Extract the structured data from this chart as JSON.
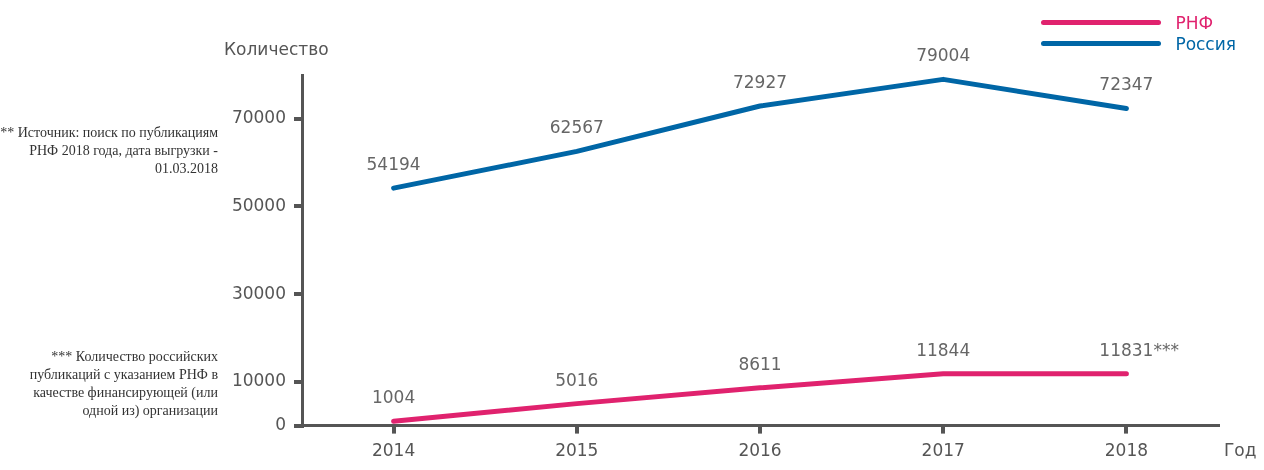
{
  "chart_data": {
    "type": "line",
    "ylabel": "Количество",
    "xlabel": "Год",
    "categories": [
      "2014",
      "2015",
      "2016",
      "2017",
      "2018"
    ],
    "series": [
      {
        "name": "РНФ",
        "color": "#e0226e",
        "values": [
          1004,
          5016,
          8611,
          11844,
          11831
        ],
        "value_labels": [
          "1004",
          "5016",
          "8611",
          "11844",
          "11831***"
        ]
      },
      {
        "name": "Россия",
        "color": "#0066a6",
        "values": [
          54194,
          62567,
          72927,
          79004,
          72347
        ],
        "value_labels": [
          "54194",
          "62567",
          "72927",
          "79004",
          "72347"
        ]
      }
    ],
    "ylim": [
      0,
      80000
    ],
    "yticks": [
      0,
      10000,
      30000,
      50000,
      70000
    ],
    "grid": false,
    "legend": "top right",
    "marker": "none",
    "annotations": [
      "** Источник: поиск по публикациям РНФ 2018 года, дата выгрузки - 01.03.2018",
      "*** Количество российских публикаций с указанием РНФ в качестве финансирующей (или одной из) организации"
    ]
  }
}
